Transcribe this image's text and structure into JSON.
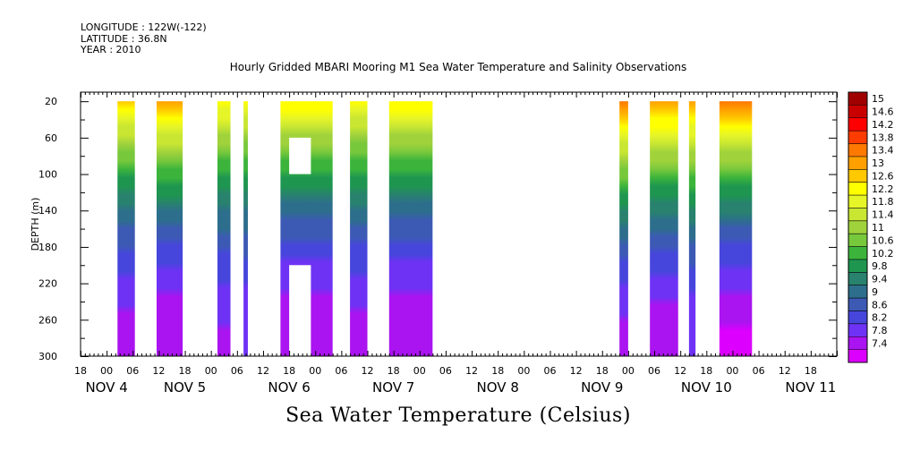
{
  "header": {
    "longitude": "LONGITUDE : 122W(-122)",
    "latitude": "LATITUDE : 36.8N",
    "year": "YEAR : 2010"
  },
  "chart_data": {
    "type": "heatmap",
    "title": "Hourly Gridded MBARI Mooring M1 Sea Water Temperature and Salinity Observations",
    "xlabel": "",
    "ylabel": "DEPTH (m)",
    "colorbar_title": "Sea Water Temperature (Celsius)",
    "x_unit": "hours from NOV 3 18:00",
    "xlim": [
      0,
      174
    ],
    "ylim": [
      300,
      10
    ],
    "y_ticks": [
      20,
      60,
      100,
      140,
      180,
      220,
      260,
      300
    ],
    "x_tick_labels": [
      "18",
      "00",
      "06",
      "12",
      "18",
      "00",
      "06",
      "12",
      "18",
      "00",
      "06",
      "12",
      "18",
      "00",
      "06",
      "12",
      "18",
      "00",
      "06",
      "12",
      "18",
      "00",
      "06",
      "12",
      "18",
      "00",
      "06",
      "12",
      "18"
    ],
    "day_labels": [
      {
        "label": "NOV  4",
        "hour": 6
      },
      {
        "label": "NOV  5",
        "hour": 24
      },
      {
        "label": "NOV  6",
        "hour": 48
      },
      {
        "label": "NOV  7",
        "hour": 72
      },
      {
        "label": "NOV  8",
        "hour": 96
      },
      {
        "label": "NOV  9",
        "hour": 120
      },
      {
        "label": "NOV 10",
        "hour": 144
      },
      {
        "label": "NOV 11",
        "hour": 168
      }
    ],
    "colorbar_levels": [
      "15",
      "14.6",
      "14.2",
      "13.8",
      "13.4",
      "13",
      "12.6",
      "12.2",
      "11.8",
      "11.4",
      "11",
      "10.6",
      "10.2",
      "9.8",
      "9.4",
      "9",
      "8.6",
      "8.2",
      "7.8",
      "7.4"
    ],
    "colorbar_colors": [
      "#a00000",
      "#c80000",
      "#ff0000",
      "#ff3c00",
      "#ff7800",
      "#ffa000",
      "#ffc800",
      "#ffff00",
      "#e6f528",
      "#c8e632",
      "#a0d23c",
      "#78c83c",
      "#3cb43c",
      "#1e9650",
      "#28826e",
      "#2d6e8c",
      "#3c5ab4",
      "#4646dc",
      "#6e32f5",
      "#aa14f0",
      "#dc00ff"
    ],
    "segments": [
      {
        "start": 8.5,
        "end": 12.5,
        "surface_temp": 12.6,
        "bottom_temp": 7.8
      },
      {
        "start": 17.5,
        "end": 23.5,
        "surface_temp": 13.0,
        "bottom_temp": 7.6
      },
      {
        "start": 31.5,
        "end": 34.5,
        "surface_temp": 12.4,
        "bottom_temp": 7.9
      },
      {
        "start": 37.5,
        "end": 38.5,
        "surface_temp": 12.2,
        "bottom_temp": 8.0
      },
      {
        "start": 46.0,
        "end": 58.0,
        "surface_temp": 12.5,
        "bottom_temp": 7.6,
        "gaps": [
          [
            60,
            100
          ],
          [
            200,
            300
          ]
        ],
        "gap_x": [
          48,
          53
        ]
      },
      {
        "start": 62.0,
        "end": 66.0,
        "surface_temp": 12.3,
        "bottom_temp": 7.8
      },
      {
        "start": 71.0,
        "end": 81.0,
        "surface_temp": 12.5,
        "bottom_temp": 7.6
      },
      {
        "start": 124.0,
        "end": 126.0,
        "surface_temp": 13.4,
        "bottom_temp": 7.8
      },
      {
        "start": 131.0,
        "end": 137.5,
        "surface_temp": 13.2,
        "bottom_temp": 7.7
      },
      {
        "start": 140.0,
        "end": 141.5,
        "surface_temp": 13.0,
        "bottom_temp": 8.0
      },
      {
        "start": 147.0,
        "end": 154.5,
        "surface_temp": 13.4,
        "bottom_temp": 7.5
      }
    ]
  }
}
